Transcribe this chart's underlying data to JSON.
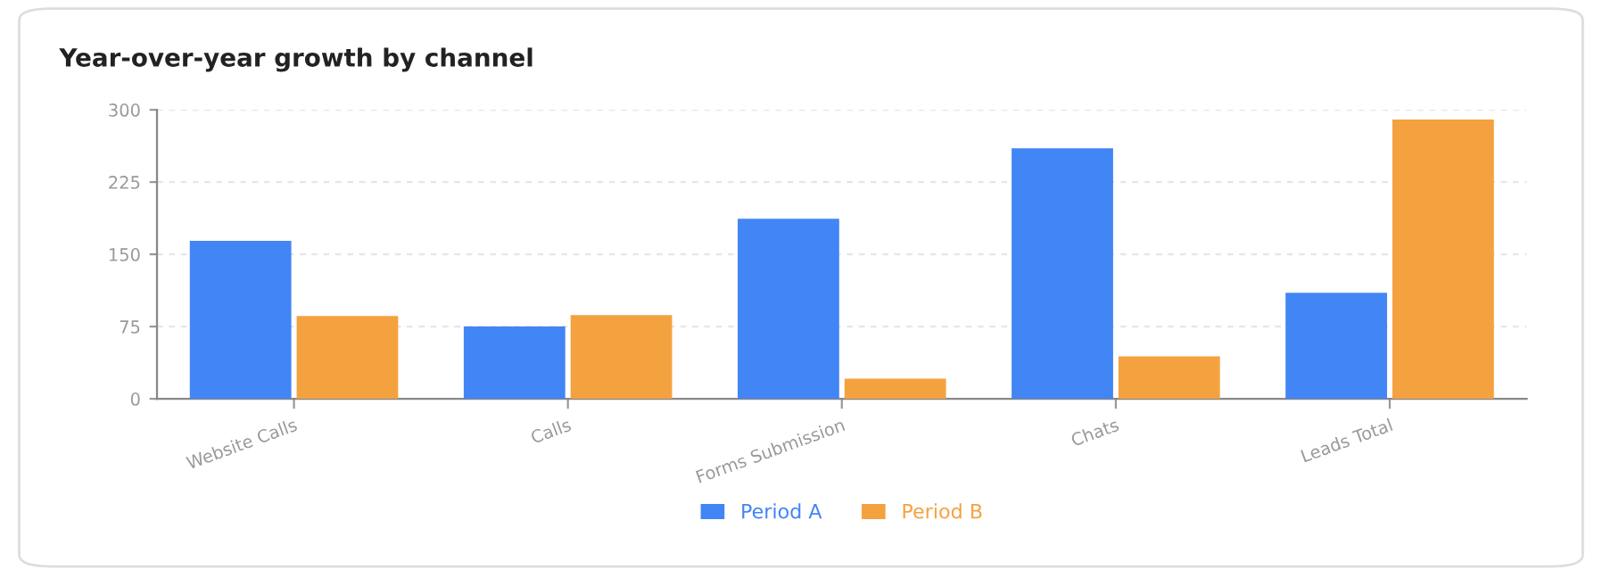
{
  "chart_data": {
    "type": "bar",
    "title": "Year-over-year growth by channel",
    "categories": [
      "Website Calls",
      "Calls",
      "Forms Submission",
      "Chats",
      "Leads Total"
    ],
    "series": [
      {
        "name": "Period A",
        "color": "#4285f4",
        "values": [
          164,
          75,
          187,
          260,
          110
        ]
      },
      {
        "name": "Period B",
        "color": "#f4a240",
        "values": [
          86,
          87,
          21,
          44,
          290
        ]
      }
    ],
    "ylim": [
      0,
      300
    ],
    "yticks": [
      0,
      75,
      150,
      225,
      300
    ],
    "grid": "y",
    "legend": "bottom"
  }
}
